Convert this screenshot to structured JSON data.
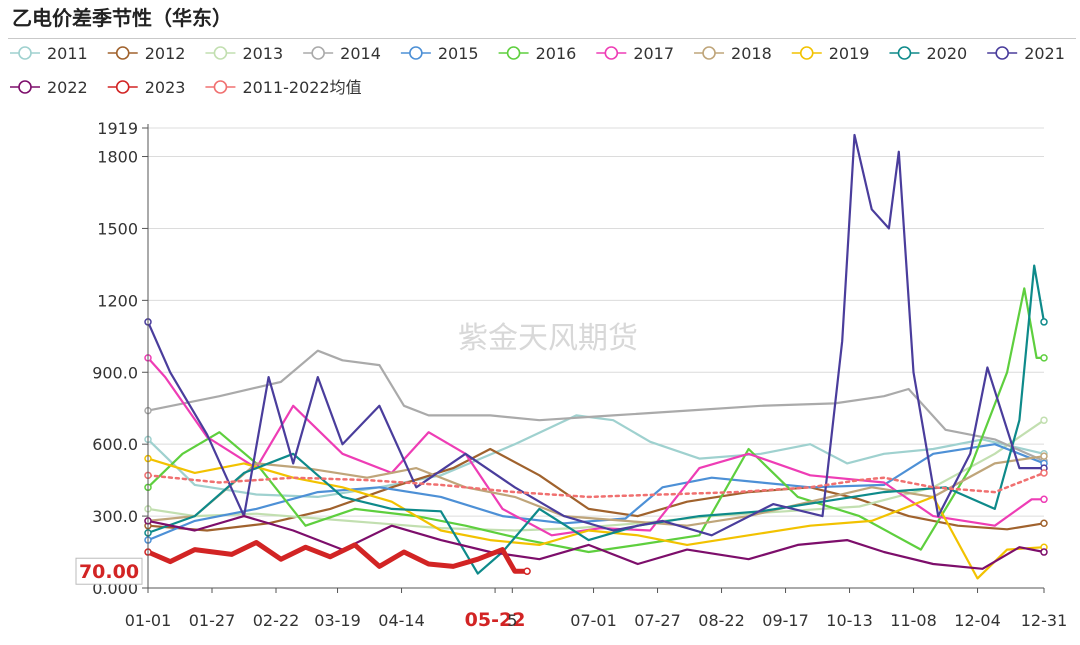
{
  "title": "乙电价差季节性（华东）",
  "watermark": "紫金天风期货",
  "chart_data": {
    "type": "line",
    "title": "乙电价差季节性（华东）",
    "xlabel": "",
    "ylabel": "",
    "ylim": [
      0,
      1919
    ],
    "y_ticks": [
      "0.000",
      "300.0",
      "600.0",
      "900.0",
      "1200",
      "1500",
      "1800",
      "1919"
    ],
    "y_tick_values": [
      0,
      300,
      600,
      900,
      1200,
      1500,
      1800,
      1919
    ],
    "x_ticks": [
      "01-01",
      "01-27",
      "02-22",
      "03-19",
      "04-14",
      "05-22",
      "5",
      "07-01",
      "07-27",
      "08-22",
      "09-17",
      "10-13",
      "11-08",
      "12-04",
      "12-31"
    ],
    "x_tick_days": [
      1,
      27,
      53,
      78,
      104,
      142,
      149,
      182,
      208,
      234,
      260,
      286,
      312,
      338,
      365
    ],
    "highlight_tick": "05-22",
    "latest_value_label": "70.00",
    "latest_value": 70,
    "series": [
      {
        "name": "2011",
        "color": "#9fd1cf",
        "points": [
          [
            1,
            620
          ],
          [
            20,
            430
          ],
          [
            45,
            390
          ],
          [
            70,
            380
          ],
          [
            95,
            420
          ],
          [
            120,
            470
          ],
          [
            150,
            600
          ],
          [
            175,
            720
          ],
          [
            190,
            700
          ],
          [
            205,
            610
          ],
          [
            225,
            540
          ],
          [
            250,
            560
          ],
          [
            270,
            600
          ],
          [
            285,
            520
          ],
          [
            300,
            560
          ],
          [
            320,
            580
          ],
          [
            340,
            620
          ],
          [
            365,
            560
          ]
        ]
      },
      {
        "name": "2012",
        "color": "#a0622d",
        "points": [
          [
            1,
            260
          ],
          [
            25,
            240
          ],
          [
            50,
            270
          ],
          [
            75,
            330
          ],
          [
            100,
            420
          ],
          [
            125,
            500
          ],
          [
            140,
            580
          ],
          [
            160,
            470
          ],
          [
            180,
            330
          ],
          [
            200,
            300
          ],
          [
            220,
            360
          ],
          [
            245,
            400
          ],
          [
            270,
            420
          ],
          [
            290,
            370
          ],
          [
            310,
            300
          ],
          [
            330,
            260
          ],
          [
            350,
            245
          ],
          [
            365,
            270
          ]
        ]
      },
      {
        "name": "2013",
        "color": "#c2dfb0",
        "points": [
          [
            1,
            330
          ],
          [
            20,
            300
          ],
          [
            45,
            310
          ],
          [
            70,
            290
          ],
          [
            95,
            270
          ],
          [
            120,
            250
          ],
          [
            150,
            240
          ],
          [
            175,
            250
          ],
          [
            200,
            270
          ],
          [
            230,
            300
          ],
          [
            260,
            320
          ],
          [
            290,
            340
          ],
          [
            320,
            420
          ],
          [
            345,
            560
          ],
          [
            365,
            700
          ]
        ]
      },
      {
        "name": "2014",
        "color": "#aaaaaa",
        "points": [
          [
            1,
            740
          ],
          [
            30,
            800
          ],
          [
            55,
            860
          ],
          [
            70,
            990
          ],
          [
            80,
            950
          ],
          [
            95,
            930
          ],
          [
            105,
            760
          ],
          [
            115,
            720
          ],
          [
            140,
            720
          ],
          [
            160,
            700
          ],
          [
            190,
            720
          ],
          [
            220,
            740
          ],
          [
            250,
            760
          ],
          [
            280,
            770
          ],
          [
            300,
            800
          ],
          [
            310,
            830
          ],
          [
            325,
            660
          ],
          [
            345,
            620
          ],
          [
            365,
            530
          ]
        ]
      },
      {
        "name": "2015",
        "color": "#4d90d6",
        "points": [
          [
            1,
            200
          ],
          [
            20,
            280
          ],
          [
            45,
            330
          ],
          [
            70,
            400
          ],
          [
            95,
            420
          ],
          [
            120,
            380
          ],
          [
            145,
            300
          ],
          [
            170,
            270
          ],
          [
            195,
            290
          ],
          [
            210,
            420
          ],
          [
            230,
            460
          ],
          [
            250,
            440
          ],
          [
            270,
            420
          ],
          [
            300,
            430
          ],
          [
            320,
            560
          ],
          [
            345,
            600
          ],
          [
            365,
            520
          ]
        ]
      },
      {
        "name": "2016",
        "color": "#5ecf3e",
        "points": [
          [
            1,
            420
          ],
          [
            15,
            560
          ],
          [
            30,
            650
          ],
          [
            45,
            520
          ],
          [
            65,
            260
          ],
          [
            85,
            330
          ],
          [
            110,
            300
          ],
          [
            130,
            260
          ],
          [
            155,
            200
          ],
          [
            180,
            150
          ],
          [
            200,
            180
          ],
          [
            225,
            220
          ],
          [
            245,
            580
          ],
          [
            265,
            380
          ],
          [
            290,
            300
          ],
          [
            315,
            160
          ],
          [
            335,
            500
          ],
          [
            350,
            900
          ],
          [
            357,
            1250
          ],
          [
            362,
            960
          ],
          [
            365,
            960
          ]
        ]
      },
      {
        "name": "2017",
        "color": "#ee3db5",
        "points": [
          [
            1,
            960
          ],
          [
            8,
            880
          ],
          [
            25,
            630
          ],
          [
            45,
            500
          ],
          [
            60,
            760
          ],
          [
            80,
            560
          ],
          [
            100,
            480
          ],
          [
            115,
            650
          ],
          [
            130,
            560
          ],
          [
            145,
            330
          ],
          [
            165,
            220
          ],
          [
            185,
            250
          ],
          [
            205,
            240
          ],
          [
            225,
            500
          ],
          [
            245,
            560
          ],
          [
            270,
            470
          ],
          [
            300,
            440
          ],
          [
            320,
            300
          ],
          [
            345,
            260
          ],
          [
            360,
            370
          ],
          [
            365,
            370
          ]
        ]
      },
      {
        "name": "2018",
        "color": "#bfa57a",
        "points": [
          [
            1,
            280
          ],
          [
            20,
            300
          ],
          [
            45,
            520
          ],
          [
            65,
            500
          ],
          [
            90,
            460
          ],
          [
            110,
            500
          ],
          [
            130,
            420
          ],
          [
            150,
            380
          ],
          [
            170,
            300
          ],
          [
            195,
            280
          ],
          [
            220,
            260
          ],
          [
            245,
            300
          ],
          [
            270,
            360
          ],
          [
            295,
            420
          ],
          [
            320,
            380
          ],
          [
            345,
            520
          ],
          [
            365,
            550
          ]
        ]
      },
      {
        "name": "2019",
        "color": "#f2c200",
        "points": [
          [
            1,
            540
          ],
          [
            20,
            480
          ],
          [
            40,
            520
          ],
          [
            60,
            460
          ],
          [
            80,
            420
          ],
          [
            100,
            360
          ],
          [
            120,
            240
          ],
          [
            140,
            200
          ],
          [
            160,
            180
          ],
          [
            180,
            240
          ],
          [
            200,
            220
          ],
          [
            220,
            180
          ],
          [
            245,
            220
          ],
          [
            270,
            260
          ],
          [
            295,
            280
          ],
          [
            320,
            380
          ],
          [
            338,
            40
          ],
          [
            350,
            160
          ],
          [
            365,
            170
          ]
        ]
      },
      {
        "name": "2020",
        "color": "#0e8a8a",
        "points": [
          [
            1,
            230
          ],
          [
            20,
            300
          ],
          [
            40,
            480
          ],
          [
            60,
            560
          ],
          [
            80,
            380
          ],
          [
            100,
            330
          ],
          [
            120,
            320
          ],
          [
            135,
            60
          ],
          [
            145,
            150
          ],
          [
            160,
            330
          ],
          [
            180,
            200
          ],
          [
            200,
            260
          ],
          [
            225,
            300
          ],
          [
            250,
            320
          ],
          [
            275,
            360
          ],
          [
            300,
            400
          ],
          [
            325,
            420
          ],
          [
            345,
            330
          ],
          [
            355,
            700
          ],
          [
            361,
            1345
          ],
          [
            365,
            1110
          ]
        ]
      },
      {
        "name": "2021",
        "color": "#4a3d9c",
        "points": [
          [
            1,
            1110
          ],
          [
            10,
            900
          ],
          [
            25,
            640
          ],
          [
            40,
            300
          ],
          [
            50,
            880
          ],
          [
            60,
            520
          ],
          [
            70,
            880
          ],
          [
            80,
            600
          ],
          [
            95,
            760
          ],
          [
            110,
            420
          ],
          [
            130,
            560
          ],
          [
            150,
            420
          ],
          [
            170,
            300
          ],
          [
            190,
            240
          ],
          [
            210,
            280
          ],
          [
            230,
            220
          ],
          [
            255,
            350
          ],
          [
            275,
            300
          ],
          [
            283,
            1030
          ],
          [
            288,
            1890
          ],
          [
            295,
            1580
          ],
          [
            302,
            1500
          ],
          [
            306,
            1820
          ],
          [
            312,
            900
          ],
          [
            322,
            300
          ],
          [
            335,
            560
          ],
          [
            342,
            920
          ],
          [
            355,
            500
          ],
          [
            365,
            500
          ]
        ]
      },
      {
        "name": "2022",
        "color": "#7d0e6b",
        "points": [
          [
            1,
            280
          ],
          [
            20,
            240
          ],
          [
            40,
            300
          ],
          [
            60,
            240
          ],
          [
            80,
            160
          ],
          [
            100,
            260
          ],
          [
            120,
            200
          ],
          [
            140,
            150
          ],
          [
            160,
            120
          ],
          [
            180,
            180
          ],
          [
            200,
            100
          ],
          [
            220,
            160
          ],
          [
            245,
            120
          ],
          [
            265,
            180
          ],
          [
            285,
            200
          ],
          [
            300,
            150
          ],
          [
            320,
            100
          ],
          [
            340,
            80
          ],
          [
            355,
            170
          ],
          [
            365,
            150
          ]
        ]
      },
      {
        "name": "2023",
        "color": "#d22424",
        "highlight": true,
        "points": [
          [
            1,
            150
          ],
          [
            10,
            110
          ],
          [
            20,
            160
          ],
          [
            35,
            140
          ],
          [
            45,
            190
          ],
          [
            55,
            120
          ],
          [
            65,
            170
          ],
          [
            75,
            130
          ],
          [
            85,
            180
          ],
          [
            95,
            90
          ],
          [
            105,
            150
          ],
          [
            115,
            100
          ],
          [
            125,
            90
          ],
          [
            135,
            120
          ],
          [
            145,
            160
          ],
          [
            150,
            70
          ],
          [
            155,
            70
          ]
        ]
      },
      {
        "name": "2011-2022均值",
        "color": "#f07070",
        "dashed": true,
        "points": [
          [
            1,
            470
          ],
          [
            30,
            440
          ],
          [
            60,
            460
          ],
          [
            90,
            450
          ],
          [
            120,
            430
          ],
          [
            150,
            400
          ],
          [
            180,
            380
          ],
          [
            210,
            390
          ],
          [
            240,
            400
          ],
          [
            270,
            420
          ],
          [
            290,
            450
          ],
          [
            300,
            460
          ],
          [
            320,
            420
          ],
          [
            345,
            400
          ],
          [
            365,
            480
          ]
        ]
      }
    ]
  }
}
